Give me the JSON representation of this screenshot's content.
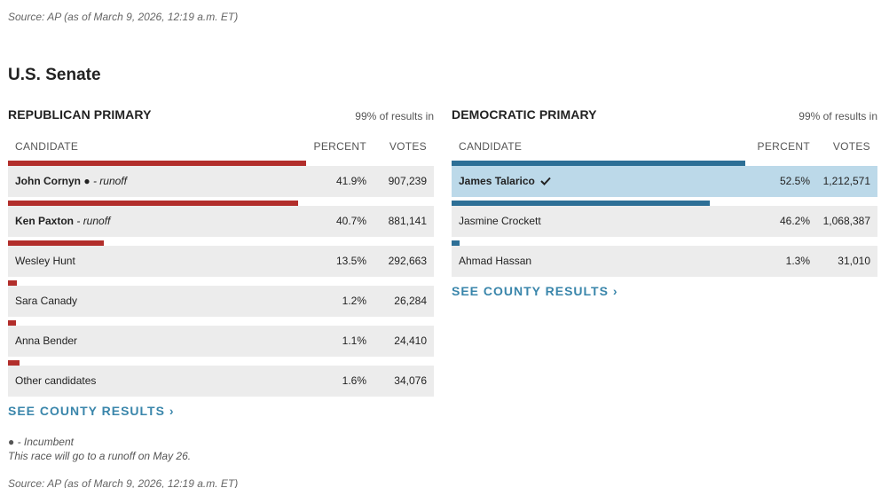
{
  "source_top": "Source: AP (as of March 9, 2026, 12:19 a.m. ET)",
  "section_title": "U.S. Senate",
  "columns": {
    "candidate": "CANDIDATE",
    "percent": "PERCENT",
    "votes": "VOTES"
  },
  "colors": {
    "republican": "#b22e2b",
    "democratic": "#2d6f96",
    "winner_highlight": "#bcd9e9",
    "link": "#3a86ab"
  },
  "republican": {
    "title": "REPUBLICAN PRIMARY",
    "reporting": "99% of results in",
    "county_link": "SEE COUNTY RESULTS ›",
    "candidates": [
      {
        "name": "John Cornyn",
        "incumbent_mark": "●",
        "note": "- runoff",
        "bold": true,
        "percent": "41.9%",
        "pct_value": 41.9,
        "votes": "907,239"
      },
      {
        "name": "Ken Paxton",
        "incumbent_mark": "",
        "note": "- runoff",
        "bold": true,
        "percent": "40.7%",
        "pct_value": 40.7,
        "votes": "881,141"
      },
      {
        "name": "Wesley Hunt",
        "incumbent_mark": "",
        "note": "",
        "bold": false,
        "percent": "13.5%",
        "pct_value": 13.5,
        "votes": "292,663"
      },
      {
        "name": "Sara Canady",
        "incumbent_mark": "",
        "note": "",
        "bold": false,
        "percent": "1.2%",
        "pct_value": 1.2,
        "votes": "26,284"
      },
      {
        "name": "Anna Bender",
        "incumbent_mark": "",
        "note": "",
        "bold": false,
        "percent": "1.1%",
        "pct_value": 1.1,
        "votes": "24,410"
      },
      {
        "name": "Other candidates",
        "incumbent_mark": "",
        "note": "",
        "bold": false,
        "percent": "1.6%",
        "pct_value": 1.6,
        "votes": "34,076"
      }
    ]
  },
  "democratic": {
    "title": "DEMOCRATIC PRIMARY",
    "reporting": "99% of results in",
    "county_link": "SEE COUNTY RESULTS ›",
    "candidates": [
      {
        "name": "James Talarico",
        "winner": true,
        "bold": true,
        "percent": "52.5%",
        "pct_value": 52.5,
        "votes": "1,212,571"
      },
      {
        "name": "Jasmine Crockett",
        "winner": false,
        "bold": false,
        "percent": "46.2%",
        "pct_value": 46.2,
        "votes": "1,068,387"
      },
      {
        "name": "Ahmad Hassan",
        "winner": false,
        "bold": false,
        "percent": "1.3%",
        "pct_value": 1.3,
        "votes": "31,010"
      }
    ]
  },
  "footnotes": {
    "incumbent": "● - Incumbent",
    "runoff": "This race will go to a runoff on May 26."
  },
  "source_bottom": "Source: AP (as of March 9, 2026, 12:19 a.m. ET)"
}
